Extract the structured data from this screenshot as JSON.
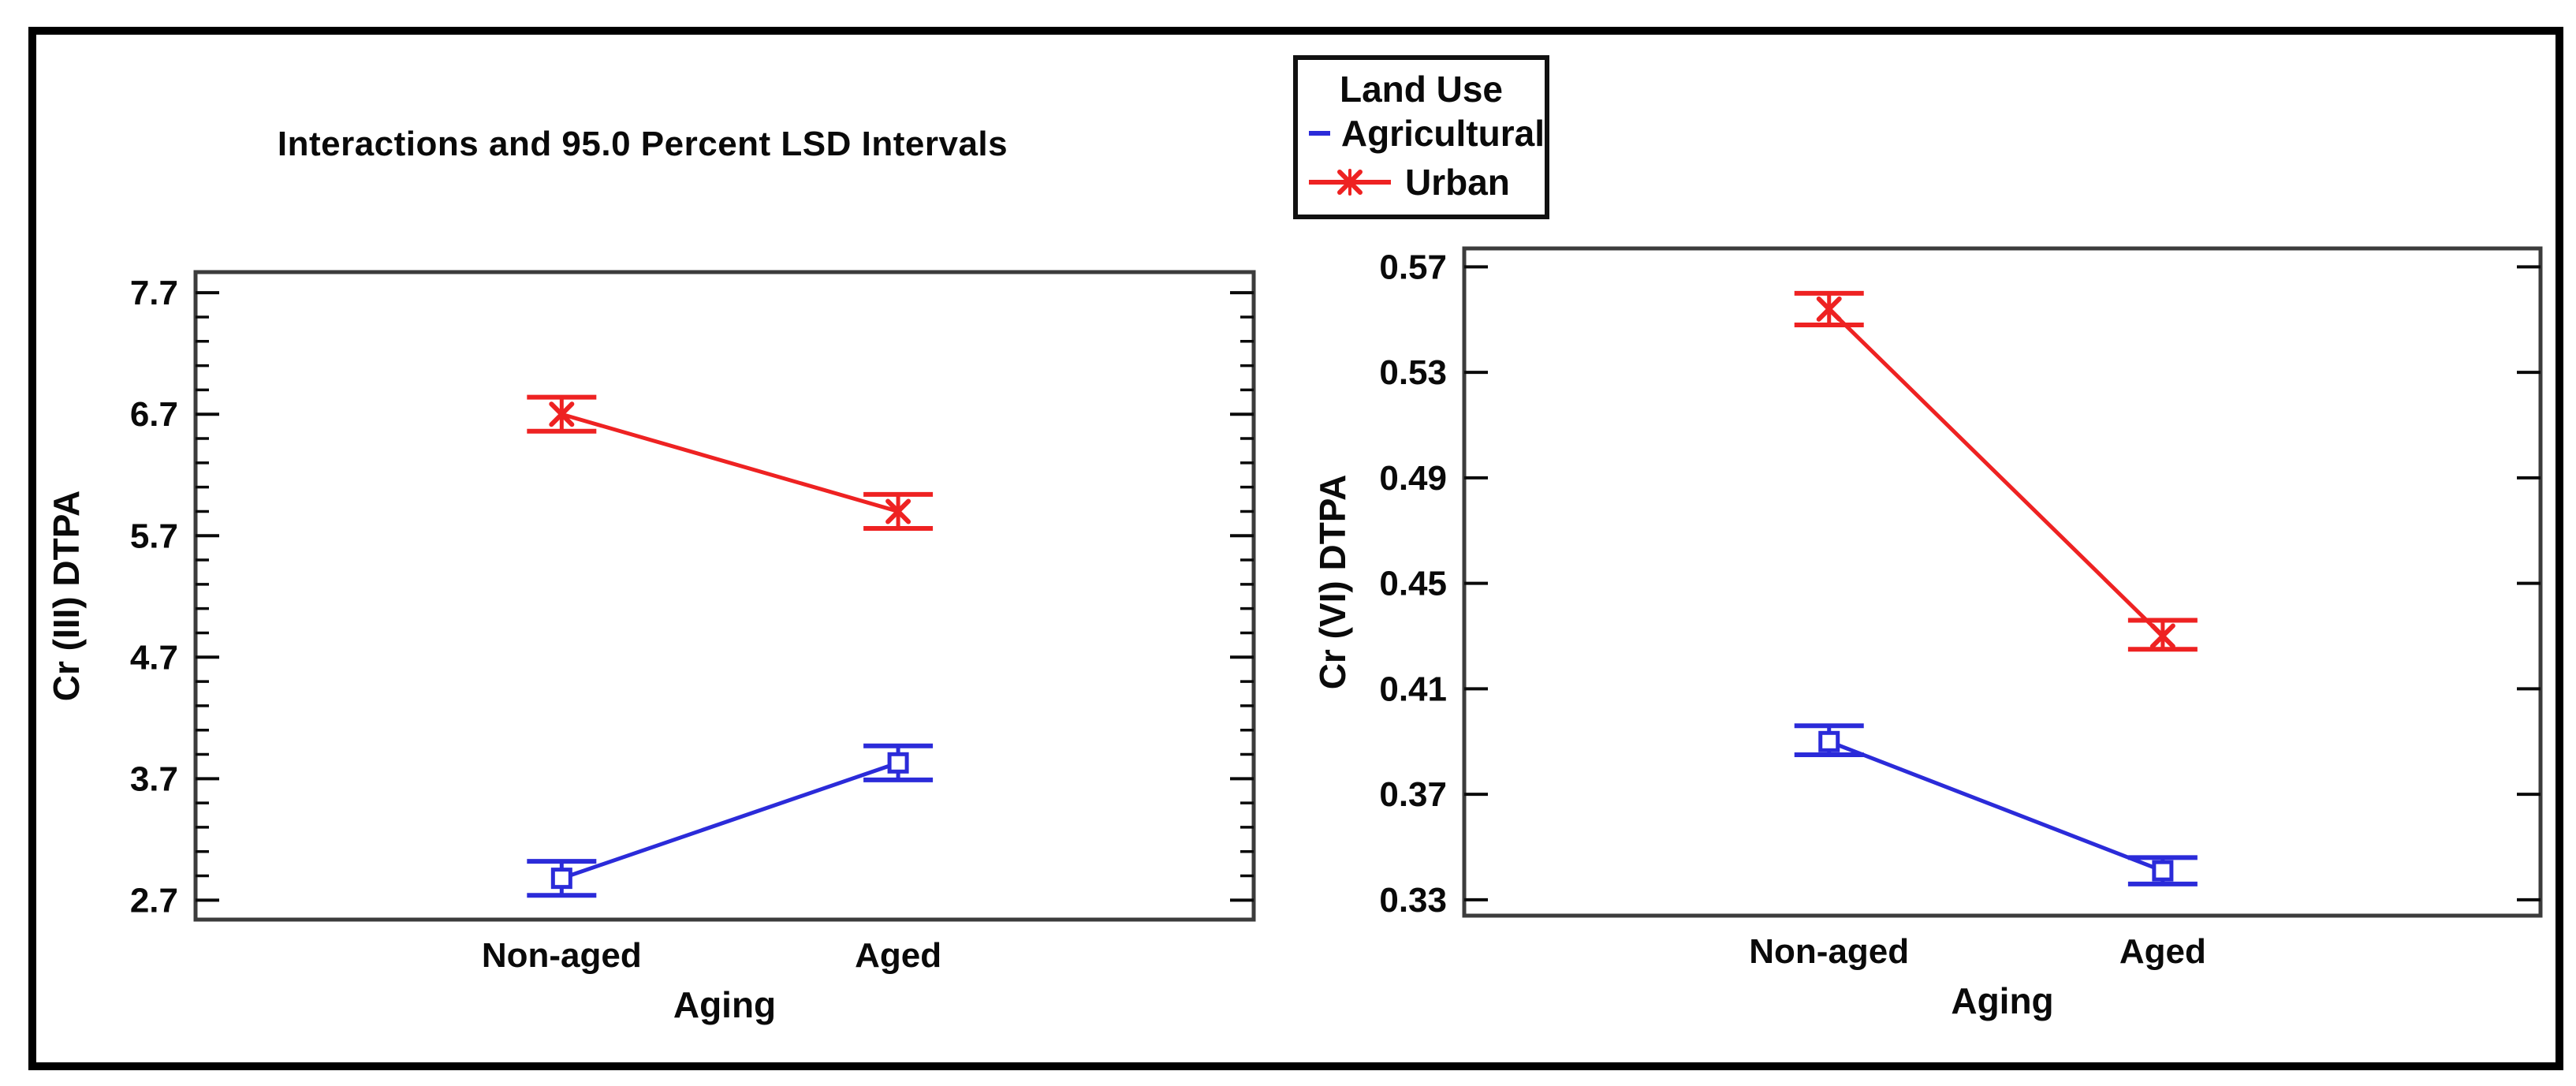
{
  "figure": {
    "title": "Interactions and 95.0 Percent LSD Intervals",
    "legend": {
      "title": "Land Use",
      "entries": [
        {
          "label": "Agricultural",
          "color": "#2B2BD9",
          "marker": "square"
        },
        {
          "label": "Urban",
          "color": "#EE2222",
          "marker": "x"
        }
      ]
    }
  },
  "chart_data": [
    {
      "type": "line",
      "title": "Interactions and 95.0 Percent LSD Intervals",
      "xlabel": "Aging",
      "ylabel": "Cr (III) DTPA",
      "legend_title": "Land Use",
      "legend_position": "top-center",
      "grid": false,
      "categories": [
        "Non-aged",
        "Aged"
      ],
      "yticks": [
        2.7,
        3.7,
        4.7,
        5.7,
        6.7,
        7.7
      ],
      "ytick_labels": [
        "2.7",
        "3.7",
        "4.7",
        "5.7",
        "6.7",
        "7.7"
      ],
      "minor_tick_step": 0.2,
      "ylim": [
        2.54,
        7.87
      ],
      "interval_type": "95.0 Percent LSD Intervals",
      "series": [
        {
          "name": "Agricultural",
          "color": "#2B2BD9",
          "marker": "square",
          "values": [
            2.88,
            3.83
          ],
          "lsd_low": [
            2.74,
            3.69
          ],
          "lsd_high": [
            3.02,
            3.97
          ]
        },
        {
          "name": "Urban",
          "color": "#EE2222",
          "marker": "x",
          "values": [
            6.7,
            5.9
          ],
          "lsd_low": [
            6.56,
            5.76
          ],
          "lsd_high": [
            6.84,
            6.04
          ]
        }
      ]
    },
    {
      "type": "line",
      "title": "",
      "xlabel": "Aging",
      "ylabel": "Cr (VI) DTPA",
      "grid": false,
      "categories": [
        "Non-aged",
        "Aged"
      ],
      "yticks": [
        0.33,
        0.37,
        0.41,
        0.45,
        0.49,
        0.53,
        0.57
      ],
      "ytick_labels": [
        "0.33",
        "0.37",
        "0.41",
        "0.45",
        "0.49",
        "0.53",
        "0.57"
      ],
      "minor_tick_step": 0,
      "ylim": [
        0.324,
        0.577
      ],
      "interval_type": "95.0 Percent LSD Intervals",
      "series": [
        {
          "name": "Agricultural",
          "color": "#2B2BD9",
          "marker": "square",
          "values": [
            0.39,
            0.341
          ],
          "lsd_low": [
            0.385,
            0.336
          ],
          "lsd_high": [
            0.396,
            0.346
          ]
        },
        {
          "name": "Urban",
          "color": "#EE2222",
          "marker": "x",
          "values": [
            0.554,
            0.43
          ],
          "lsd_low": [
            0.548,
            0.425
          ],
          "lsd_high": [
            0.56,
            0.436
          ]
        }
      ]
    }
  ]
}
